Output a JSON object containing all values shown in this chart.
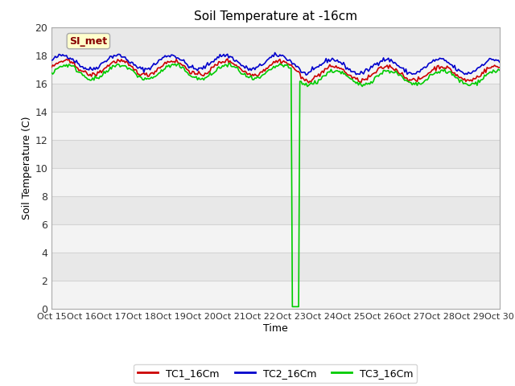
{
  "title": "Soil Temperature at -16cm",
  "xlabel": "Time",
  "ylabel": "Soil Temperature (C)",
  "ylim": [
    0,
    20
  ],
  "xlim": [
    0,
    15
  ],
  "yticks": [
    0,
    2,
    4,
    6,
    8,
    10,
    12,
    14,
    16,
    18,
    20
  ],
  "xtick_labels": [
    "Oct 15",
    "Oct 16",
    "Oct 17",
    "Oct 18",
    "Oct 19",
    "Oct 20",
    "Oct 21",
    "Oct 22",
    "Oct 23",
    "Oct 24",
    "Oct 25",
    "Oct 26",
    "Oct 27",
    "Oct 28",
    "Oct 29",
    "Oct 30"
  ],
  "axes_bg_color": "#e8e8e8",
  "fig_bg_color": "#ffffff",
  "grid_color": "#d4d4d4",
  "line_colors": {
    "TC1": "#cc0000",
    "TC2": "#0000cc",
    "TC3": "#00cc00"
  },
  "legend_label": "SI_met",
  "legend_bg": "#ffffcc",
  "legend_border": "#aaaaaa",
  "legend_text_color": "#880000",
  "n_points": 360,
  "seed": 42
}
